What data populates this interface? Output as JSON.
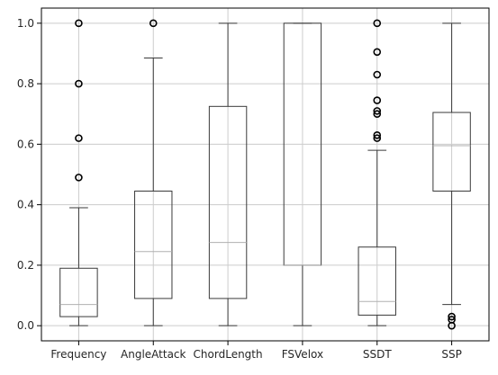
{
  "chart_data": {
    "type": "box",
    "title": "",
    "xlabel": "",
    "ylabel": "",
    "ylim": [
      -0.05,
      1.05
    ],
    "yticks": [
      "0.0",
      "0.2",
      "0.4",
      "0.6",
      "0.8",
      "1.0"
    ],
    "ytick_values": [
      0.0,
      0.2,
      0.4,
      0.6,
      0.8,
      1.0
    ],
    "grid": true,
    "categories": [
      "Frequency",
      "AngleAttack",
      "ChordLength",
      "FSVelox",
      "SSDT",
      "SSP"
    ],
    "boxes": [
      {
        "category": "Frequency",
        "whisker_low": 0.0,
        "q1": 0.03,
        "median": 0.07,
        "q3": 0.19,
        "whisker_high": 0.39,
        "outliers": [
          0.49,
          0.62,
          0.8,
          1.0
        ]
      },
      {
        "category": "AngleAttack",
        "whisker_low": 0.0,
        "q1": 0.09,
        "median": 0.245,
        "q3": 0.445,
        "whisker_high": 0.885,
        "outliers": [
          1.0
        ]
      },
      {
        "category": "ChordLength",
        "whisker_low": 0.0,
        "q1": 0.09,
        "median": 0.275,
        "q3": 0.725,
        "whisker_high": 1.0,
        "outliers": []
      },
      {
        "category": "FSVelox",
        "whisker_low": 0.0,
        "q1": 0.2,
        "median": 0.2,
        "q3": 1.0,
        "whisker_high": 1.0,
        "outliers": []
      },
      {
        "category": "SSDT",
        "whisker_low": 0.0,
        "q1": 0.035,
        "median": 0.08,
        "q3": 0.26,
        "whisker_high": 0.58,
        "outliers": [
          0.62,
          0.63,
          0.7,
          0.71,
          0.745,
          0.83,
          0.905,
          1.0
        ]
      },
      {
        "category": "SSP",
        "whisker_low": 0.07,
        "q1": 0.445,
        "median": 0.595,
        "q3": 0.705,
        "whisker_high": 1.0,
        "outliers": [
          0.0,
          0.02,
          0.03
        ]
      }
    ],
    "colors": {
      "box": "#3a3a3a",
      "median": "#b0b0b0",
      "grid": "#cccccc",
      "axis": "#000000"
    }
  }
}
